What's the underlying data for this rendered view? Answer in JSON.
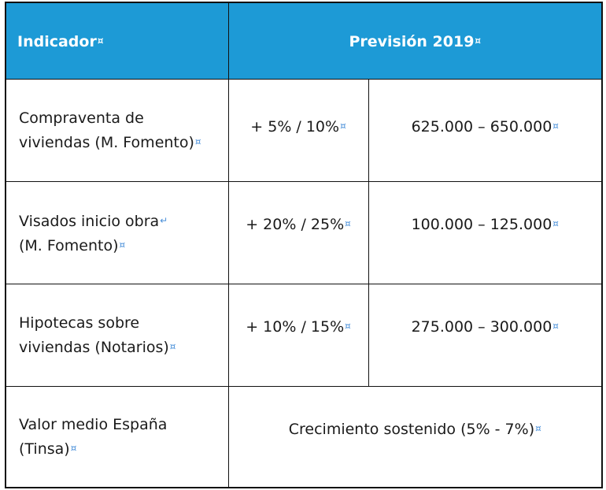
{
  "header": {
    "indicator": "Indicador",
    "forecast": "Previsión 2019"
  },
  "rows": [
    {
      "label_line1": "Compraventa de",
      "label_line2": "viviendas (M. Fomento)",
      "pct": "+ 5% / 10%",
      "range": "625.000 – 650.000"
    },
    {
      "label_line1": "Visados inicio obra",
      "label_line2": "(M. Fomento)",
      "pct": "+ 20% / 25%",
      "range": "100.000 – 125.000"
    },
    {
      "label_line1": "Hipotecas sobre",
      "label_line2": "viviendas (Notarios)",
      "pct": "+ 10% / 15%",
      "range": "275.000 – 300.000"
    },
    {
      "label_line1": "Valor medio España",
      "label_line2": "(Tinsa)",
      "merged": "Crecimiento sostenido (5% - 7%)"
    }
  ],
  "marks": {
    "cell_end": "¤",
    "line_break": "↵"
  }
}
